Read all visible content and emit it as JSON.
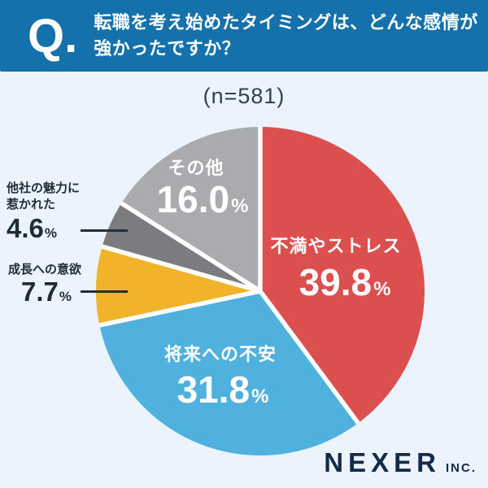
{
  "header": {
    "q_label": "Q.",
    "question_line1": "転職を考え始めたタイミングは、どんな感情が",
    "question_line2": "強かったですか？",
    "bg_color": "#1471ab"
  },
  "sample_size": "(n=581)",
  "chart_data": {
    "type": "pie",
    "title": "転職を考え始めたタイミングは、どんな感情が強かったですか？",
    "sample_size_label": "(n=581)",
    "unit": "%",
    "start_angle_deg": -90,
    "direction": "clockwise",
    "separator_color": "#ffffff",
    "segments": [
      {
        "label": "不満やストレス",
        "value": 39.8,
        "display_value": "39.8",
        "color": "#dc4f4f",
        "label_placement": "inside"
      },
      {
        "label": "将来への不安",
        "value": 31.8,
        "display_value": "31.8",
        "color": "#50b1df",
        "label_placement": "inside"
      },
      {
        "label": "成長への意欲",
        "value": 7.7,
        "display_value": "7.7",
        "color": "#f0b32a",
        "label_placement": "outside"
      },
      {
        "label": "他社の魅力に惹かれた",
        "value": 4.6,
        "display_value": "4.6",
        "color": "#7b7c80",
        "label_placement": "outside"
      },
      {
        "label": "その他",
        "value": 16.0,
        "display_value": "16.0",
        "color": "#a9abae",
        "label_placement": "inside"
      }
    ]
  },
  "footer": {
    "brand": "NEXER",
    "brand_suffix": "INC."
  }
}
